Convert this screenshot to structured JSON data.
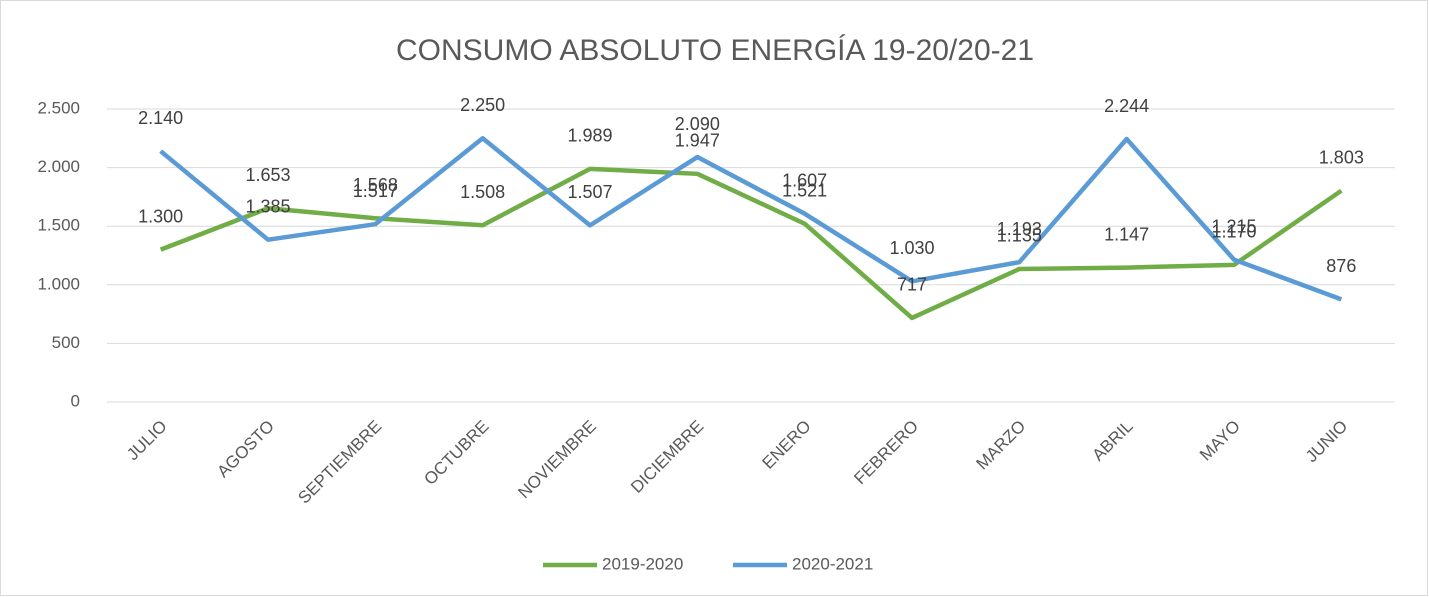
{
  "chart_data": {
    "type": "line",
    "title": "CONSUMO ABSOLUTO ENERGÍA 19-20/20-21",
    "categories": [
      "JULIO",
      "AGOSTO",
      "SEPTIEMBRE",
      "OCTUBRE",
      "NOVIEMBRE",
      "DICIEMBRE",
      "ENERO",
      "FEBRERO",
      "MARZO",
      "ABRIL",
      "MAYO",
      "JUNIO"
    ],
    "series": [
      {
        "name": "2019-2020",
        "color": "#70ad47",
        "values": [
          1300,
          1653,
          1568,
          1508,
          1989,
          1947,
          1521,
          717,
          1135,
          1147,
          1170,
          1803
        ],
        "value_labels": [
          "1.300",
          "1.653",
          "1.568",
          "1.508",
          "1.989",
          "1.947",
          "1.521",
          "717",
          "1.135",
          "1.147",
          "1.170",
          "1.803"
        ]
      },
      {
        "name": "2020-2021",
        "color": "#5b9bd5",
        "values": [
          2140,
          1385,
          1517,
          2250,
          1507,
          2090,
          1607,
          1030,
          1193,
          2244,
          1215,
          876
        ],
        "value_labels": [
          "2.140",
          "1.385",
          "1.517",
          "2.250",
          "1.507",
          "2.090",
          "1.607",
          "1.030",
          "1.193",
          "2.244",
          "1.215",
          "876"
        ]
      }
    ],
    "ylim": [
      0,
      2500
    ],
    "yticks": [
      0,
      500,
      {
        "value": 1000,
        "label": "1.000"
      },
      {
        "value": 1500,
        "label": "1.500"
      },
      {
        "value": 2000,
        "label": "2.000"
      },
      {
        "value": 2500,
        "label": "2.500"
      }
    ],
    "grid": true,
    "legend": "bottom"
  }
}
